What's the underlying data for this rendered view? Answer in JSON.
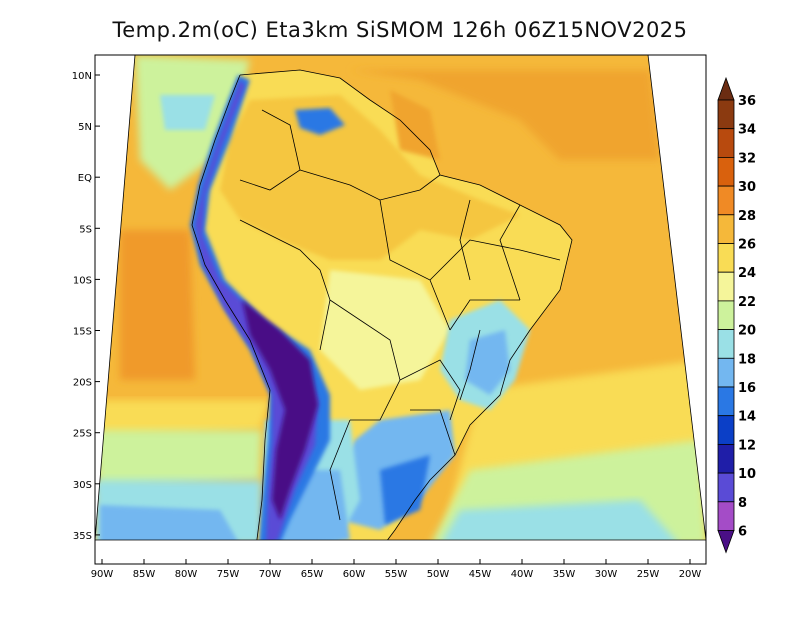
{
  "title": "Temp.2m(oC) Eta3km SiSMOM 126h 06Z15NOV2025",
  "axes": {
    "lat_labels": [
      "10N",
      "5N",
      "EQ",
      "5S",
      "10S",
      "15S",
      "20S",
      "25S",
      "30S",
      "35S"
    ],
    "lon_labels": [
      "90W",
      "85W",
      "80W",
      "75W",
      "70W",
      "65W",
      "60W",
      "55W",
      "50W",
      "45W",
      "40W",
      "35W",
      "30W",
      "25W",
      "20W"
    ]
  },
  "colorbar": {
    "labels": [
      "36",
      "34",
      "32",
      "30",
      "28",
      "26",
      "24",
      "22",
      "20",
      "18",
      "16",
      "14",
      "12",
      "10",
      "8",
      "6"
    ],
    "colors": [
      "#6b2c12",
      "#8b3a10",
      "#b84a0e",
      "#d9610d",
      "#f08a25",
      "#f5b83a",
      "#f9dc55",
      "#f5f59a",
      "#cdf29c",
      "#9ae0e6",
      "#73b7f0",
      "#2a78e4",
      "#0b3fc7",
      "#1f1ea8",
      "#5a4bd6",
      "#a44cc7",
      "#4a0f86"
    ]
  },
  "colors": {
    "ocean": "#f5b83a",
    "coast_line": "#000000"
  }
}
